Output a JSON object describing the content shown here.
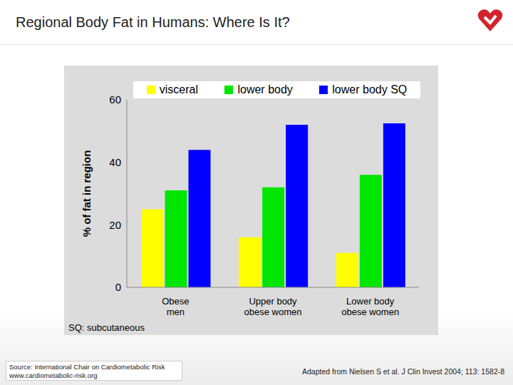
{
  "chart_data": {
    "type": "bar",
    "title": "Regional Body Fat in Humans: Where Is It?",
    "y_label": "% of fat in region",
    "categories": [
      "Obese men",
      "Upper body obese women",
      "Lower body obese women"
    ],
    "series": [
      {
        "name": "visceral",
        "color": "#ffff00",
        "values": [
          25,
          16,
          11
        ]
      },
      {
        "name": "lower body",
        "color": "#00e600",
        "values": [
          31,
          32,
          36
        ]
      },
      {
        "name": "lower body SQ",
        "color": "#0000ff",
        "values": [
          44,
          52,
          52.5
        ]
      }
    ],
    "ylim": [
      0,
      60
    ],
    "yticks": [
      0,
      20,
      40,
      60
    ],
    "grid": false,
    "legend": "top"
  },
  "footnote": "SQ: subcutaneous",
  "source": [
    "Source: International Chair on Cardiometabolic Risk",
    "www.cardiometabolic-risk.org"
  ],
  "citation": "Adapted from Nielsen S et al. J Clin Invest 2004; 113: 1582-8"
}
